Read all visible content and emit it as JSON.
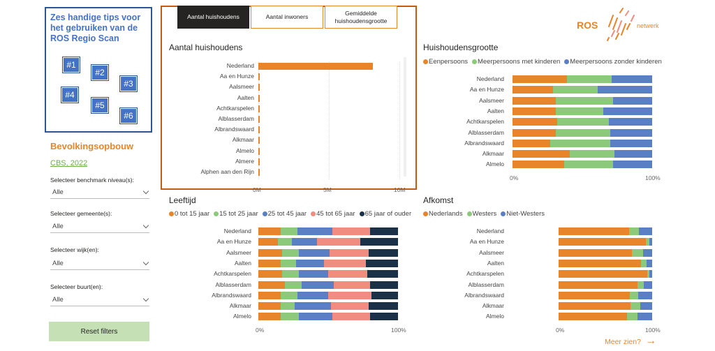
{
  "tips": {
    "title": "Zes handige tips voor het gebruiken van de ROS Regio Scan",
    "items": [
      "#1",
      "#2",
      "#3",
      "#4",
      "#5",
      "#6"
    ]
  },
  "sidebar": {
    "section_title": "Bevolkingsopbouw",
    "source_link": "CBS, 2022",
    "filters": [
      {
        "label": "Selecteer benchmark niveau(s):",
        "value": "Alle"
      },
      {
        "label": "Selecteer gemeente(s):",
        "value": "Alle"
      },
      {
        "label": "Selecteer wijk(en):",
        "value": "Alle"
      },
      {
        "label": "Selecteer buurt(en):",
        "value": "Alle"
      }
    ],
    "reset_label": "Reset filters"
  },
  "tabs": [
    {
      "label": "Aantal huishoudens",
      "active": true
    },
    {
      "label": "Aantal inwoners",
      "active": false
    },
    {
      "label": "Gemiddelde huishoudensgrootte",
      "active": false
    }
  ],
  "logo": {
    "text": "ROS",
    "subtext": "netwerk"
  },
  "footer": {
    "more_label": "Meer zien?",
    "arrow": "→"
  },
  "colors": {
    "orange": "#e8852a",
    "green": "#8cc97a",
    "blue": "#5b7fc4",
    "salmon": "#f08c80",
    "navy": "#1b3148",
    "accent_border": "#c55a11"
  },
  "chart_data": [
    {
      "id": "huishoudens",
      "type": "bar",
      "orientation": "horizontal",
      "title": "Aantal huishoudens",
      "categories": [
        "Nederland",
        "Aa en Hunze",
        "Aalsmeer",
        "Aalten",
        "Achtkarspelen",
        "Alblasserdam",
        "Albrandswaard",
        "Alkmaar",
        "Almelo",
        "Almere",
        "Alphen aan den Rijn"
      ],
      "values": [
        8100000,
        11000,
        13000,
        11000,
        11500,
        8500,
        10500,
        50000,
        32000,
        90000,
        47000
      ],
      "xlim": [
        0,
        10000000
      ],
      "ticks": [
        "0M",
        "5M",
        "10M"
      ],
      "tick_values": [
        0,
        5000000,
        10000000
      ],
      "color": "#e8852a"
    },
    {
      "id": "grootte",
      "type": "bar",
      "orientation": "horizontal",
      "stacked": "percent",
      "title": "Huishoudensgrootte",
      "categories": [
        "Nederland",
        "Aa en Hunze",
        "Aalsmeer",
        "Aalten",
        "Achtkarspelen",
        "Alblasserdam",
        "Albrandswaard",
        "Alkmaar",
        "Almelo"
      ],
      "series": [
        {
          "name": "Eenpersoons",
          "color": "#e8852a",
          "values": [
            39,
            29,
            31,
            31,
            32,
            31,
            27,
            41,
            37
          ]
        },
        {
          "name": "Meerpersoons met kinderen",
          "color": "#8cc97a",
          "values": [
            32,
            32,
            41,
            34,
            37,
            39,
            43,
            32,
            35
          ]
        },
        {
          "name": "Meerpersoons zonder kinderen",
          "color": "#5b7fc4",
          "values": [
            29,
            39,
            28,
            35,
            31,
            30,
            30,
            27,
            28
          ]
        }
      ],
      "ticks": [
        "0%",
        "100%"
      ]
    },
    {
      "id": "leeftijd",
      "type": "bar",
      "orientation": "horizontal",
      "stacked": "percent",
      "title": "Leeftijd",
      "categories": [
        "Nederland",
        "Aa en Hunze",
        "Aalsmeer",
        "Aalten",
        "Achtkarspelen",
        "Alblasserdam",
        "Albrandswaard",
        "Alkmaar",
        "Almelo"
      ],
      "series": [
        {
          "name": "0 tot 15 jaar",
          "color": "#e8852a",
          "values": [
            16,
            14,
            17,
            16,
            17,
            19,
            16,
            16,
            16
          ]
        },
        {
          "name": "15 tot 25 jaar",
          "color": "#8cc97a",
          "values": [
            12,
            10,
            12,
            11,
            12,
            12,
            12,
            10,
            13
          ]
        },
        {
          "name": "25 tot 45 jaar",
          "color": "#5b7fc4",
          "values": [
            25,
            18,
            22,
            20,
            21,
            23,
            22,
            26,
            24
          ]
        },
        {
          "name": "45 tot 65 jaar",
          "color": "#f08c80",
          "values": [
            27,
            31,
            28,
            30,
            28,
            26,
            31,
            27,
            27
          ]
        },
        {
          "name": "65 jaar of ouder",
          "color": "#1b3148",
          "values": [
            20,
            27,
            21,
            23,
            22,
            20,
            19,
            21,
            20
          ]
        }
      ],
      "ticks": [
        "0%",
        "100%"
      ]
    },
    {
      "id": "afkomst",
      "type": "bar",
      "orientation": "horizontal",
      "stacked": "percent",
      "title": "Afkomst",
      "categories": [
        "Nederland",
        "Aa en Hunze",
        "Aalsmeer",
        "Aalten",
        "Achtkarspelen",
        "Alblasserdam",
        "Albrandswaard",
        "Alkmaar",
        "Almelo"
      ],
      "series": [
        {
          "name": "Nederlands",
          "color": "#e8852a",
          "values": [
            75,
            93,
            78,
            88,
            95,
            84,
            76,
            77,
            73
          ]
        },
        {
          "name": "Westers",
          "color": "#8cc97a",
          "values": [
            11,
            4,
            12,
            6,
            2,
            7,
            9,
            10,
            11
          ]
        },
        {
          "name": "Niet-Westers",
          "color": "#5b7fc4",
          "values": [
            14,
            3,
            10,
            6,
            3,
            9,
            15,
            13,
            16
          ]
        }
      ],
      "ticks": [
        "0%",
        "100%"
      ]
    }
  ]
}
